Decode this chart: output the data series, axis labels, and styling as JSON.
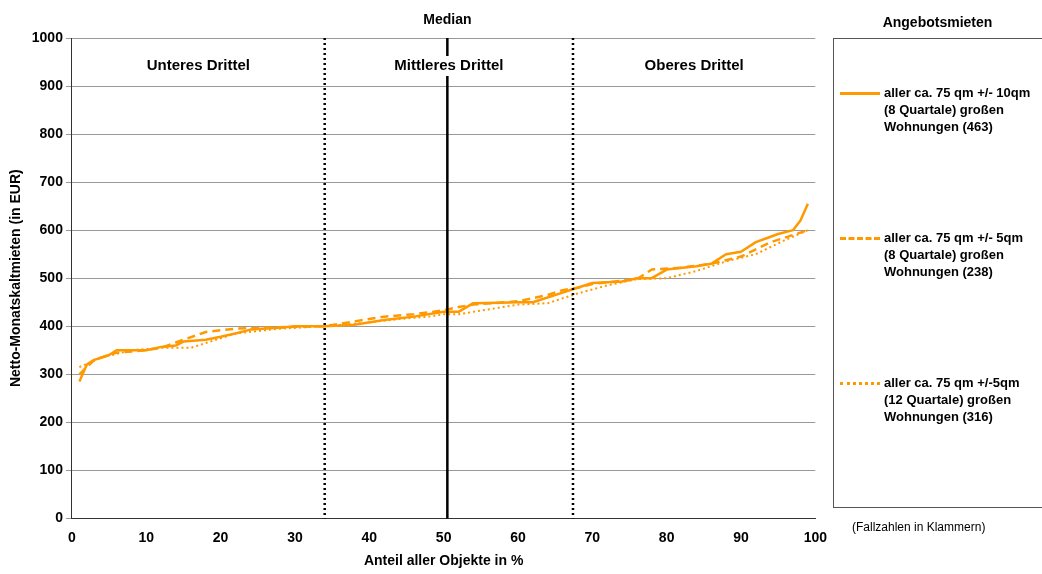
{
  "chart_data": {
    "type": "line",
    "xlabel": "Anteil aller Objekte in %",
    "ylabel": "Netto-Monatskaltmieten (in EUR)",
    "legend_title": "Angebotsmieten",
    "legend": "right",
    "grid": "y",
    "marker": "none",
    "xlim": [
      0,
      100
    ],
    "xticks": [
      0,
      10,
      20,
      30,
      40,
      50,
      60,
      70,
      80,
      90,
      100
    ],
    "ylim": [
      0,
      1000
    ],
    "yticks": [
      0,
      100,
      200,
      300,
      400,
      500,
      600,
      700,
      800,
      900,
      1000
    ],
    "series": [
      {
        "name": "aller ca. 75 qm +/- 10qm (8 Quartale) großen Wohnungen (463)",
        "color": "#ff9900",
        "line_style": "solid",
        "x": [
          1,
          2,
          3,
          5,
          6,
          10,
          12,
          14,
          15,
          18,
          20,
          22,
          24,
          28,
          30,
          34,
          38,
          42,
          46,
          50,
          52,
          54,
          60,
          62,
          66,
          68,
          70,
          74,
          76,
          78,
          80,
          84,
          86,
          88,
          90,
          92,
          95,
          97,
          98,
          99
        ],
        "values": [
          285,
          320,
          330,
          340,
          350,
          350,
          357,
          360,
          368,
          372,
          378,
          385,
          393,
          397,
          400,
          400,
          403,
          413,
          420,
          430,
          430,
          448,
          450,
          450,
          470,
          480,
          490,
          493,
          500,
          500,
          518,
          525,
          530,
          550,
          555,
          575,
          592,
          600,
          620,
          655
        ]
      },
      {
        "name": "aller ca. 75 qm +/- 5qm (8 Quartale) großen Wohnungen (238)",
        "color": "#ff9900",
        "line_style": "dashed",
        "x": [
          1,
          3,
          6,
          10,
          12,
          15,
          18,
          22,
          28,
          34,
          38,
          42,
          46,
          50,
          52,
          54,
          60,
          64,
          66,
          68,
          70,
          76,
          78,
          82,
          86,
          90,
          94,
          97,
          99
        ],
        "values": [
          300,
          330,
          345,
          350,
          355,
          372,
          388,
          395,
          398,
          400,
          410,
          420,
          425,
          433,
          440,
          445,
          452,
          465,
          475,
          480,
          488,
          498,
          518,
          522,
          530,
          545,
          575,
          590,
          600
        ]
      },
      {
        "name": "aller ca. 75 qm +/-5qm (12 Quartale) großen Wohnungen (316)",
        "color": "#ff9900",
        "line_style": "dotted",
        "x": [
          1,
          4,
          8,
          12,
          16,
          18,
          22,
          28,
          34,
          40,
          44,
          48,
          50,
          52,
          56,
          60,
          64,
          68,
          72,
          76,
          80,
          84,
          88,
          92,
          96,
          99
        ],
        "values": [
          315,
          335,
          350,
          355,
          355,
          365,
          385,
          395,
          400,
          408,
          415,
          420,
          425,
          425,
          435,
          445,
          448,
          468,
          485,
          498,
          500,
          515,
          535,
          550,
          580,
          600
        ]
      }
    ],
    "ref_lines": [
      {
        "axis": "x",
        "value": 34,
        "color": "#000000",
        "line_style": "dotted"
      },
      {
        "axis": "x",
        "value": 50.5,
        "label": "Median",
        "color": "#000000",
        "line_style": "solid"
      },
      {
        "axis": "x",
        "value": 67.4,
        "color": "#000000",
        "line_style": "dotted"
      }
    ],
    "annotations": [
      "Unteres Drittel",
      "Mittleres Drittel",
      "Oberes Drittel",
      "(Fallzahlen in Klammern)"
    ]
  }
}
